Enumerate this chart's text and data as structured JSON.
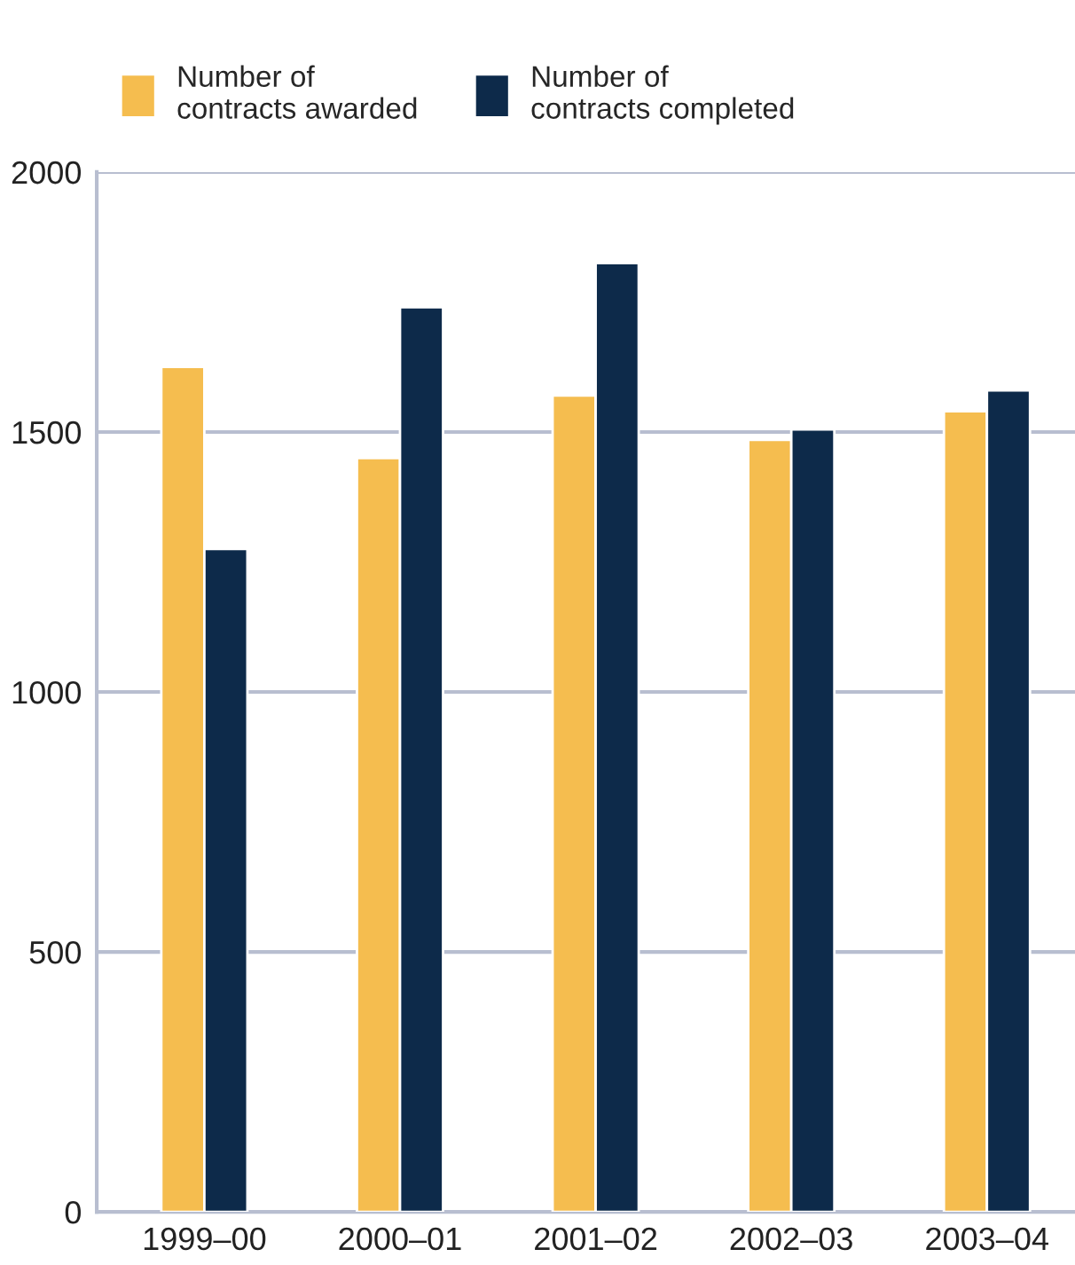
{
  "chart_data": {
    "type": "bar",
    "categories": [
      "1999–00",
      "2000–01",
      "2001–02",
      "2002–03",
      "2003–04"
    ],
    "series": [
      {
        "name": "Number of\ncontracts awarded",
        "color": "#f5bd4f",
        "values": [
          1625,
          1450,
          1570,
          1485,
          1540
        ]
      },
      {
        "name": "Number of\ncontracts completed",
        "color": "#0d2a4a",
        "values": [
          1275,
          1740,
          1825,
          1505,
          1580
        ]
      }
    ],
    "ylim": [
      0,
      2000
    ],
    "yticks": [
      0,
      500,
      1000,
      1500,
      2000
    ],
    "grid": "y",
    "legend": "top left"
  }
}
